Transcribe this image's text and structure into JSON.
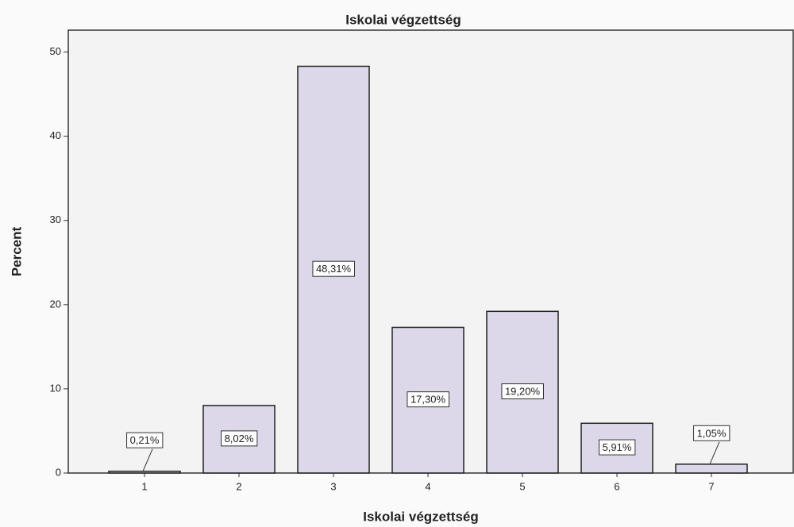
{
  "chart_data": {
    "type": "bar",
    "title": "Iskolai végzettség",
    "x_label": "Iskolai végzettség",
    "y_label": "Percent",
    "categories": [
      "1",
      "2",
      "3",
      "4",
      "5",
      "6",
      "7"
    ],
    "values": [
      0.21,
      8.02,
      48.31,
      17.3,
      19.2,
      5.91,
      1.05
    ],
    "value_labels": [
      "0,21%",
      "8,02%",
      "48,31%",
      "17,30%",
      "19,20%",
      "5,91%",
      "1,05%"
    ],
    "color": "#dcd8ea",
    "ylim": [
      0,
      52.6
    ],
    "yticks": [
      0,
      10,
      20,
      30,
      40,
      50
    ]
  }
}
